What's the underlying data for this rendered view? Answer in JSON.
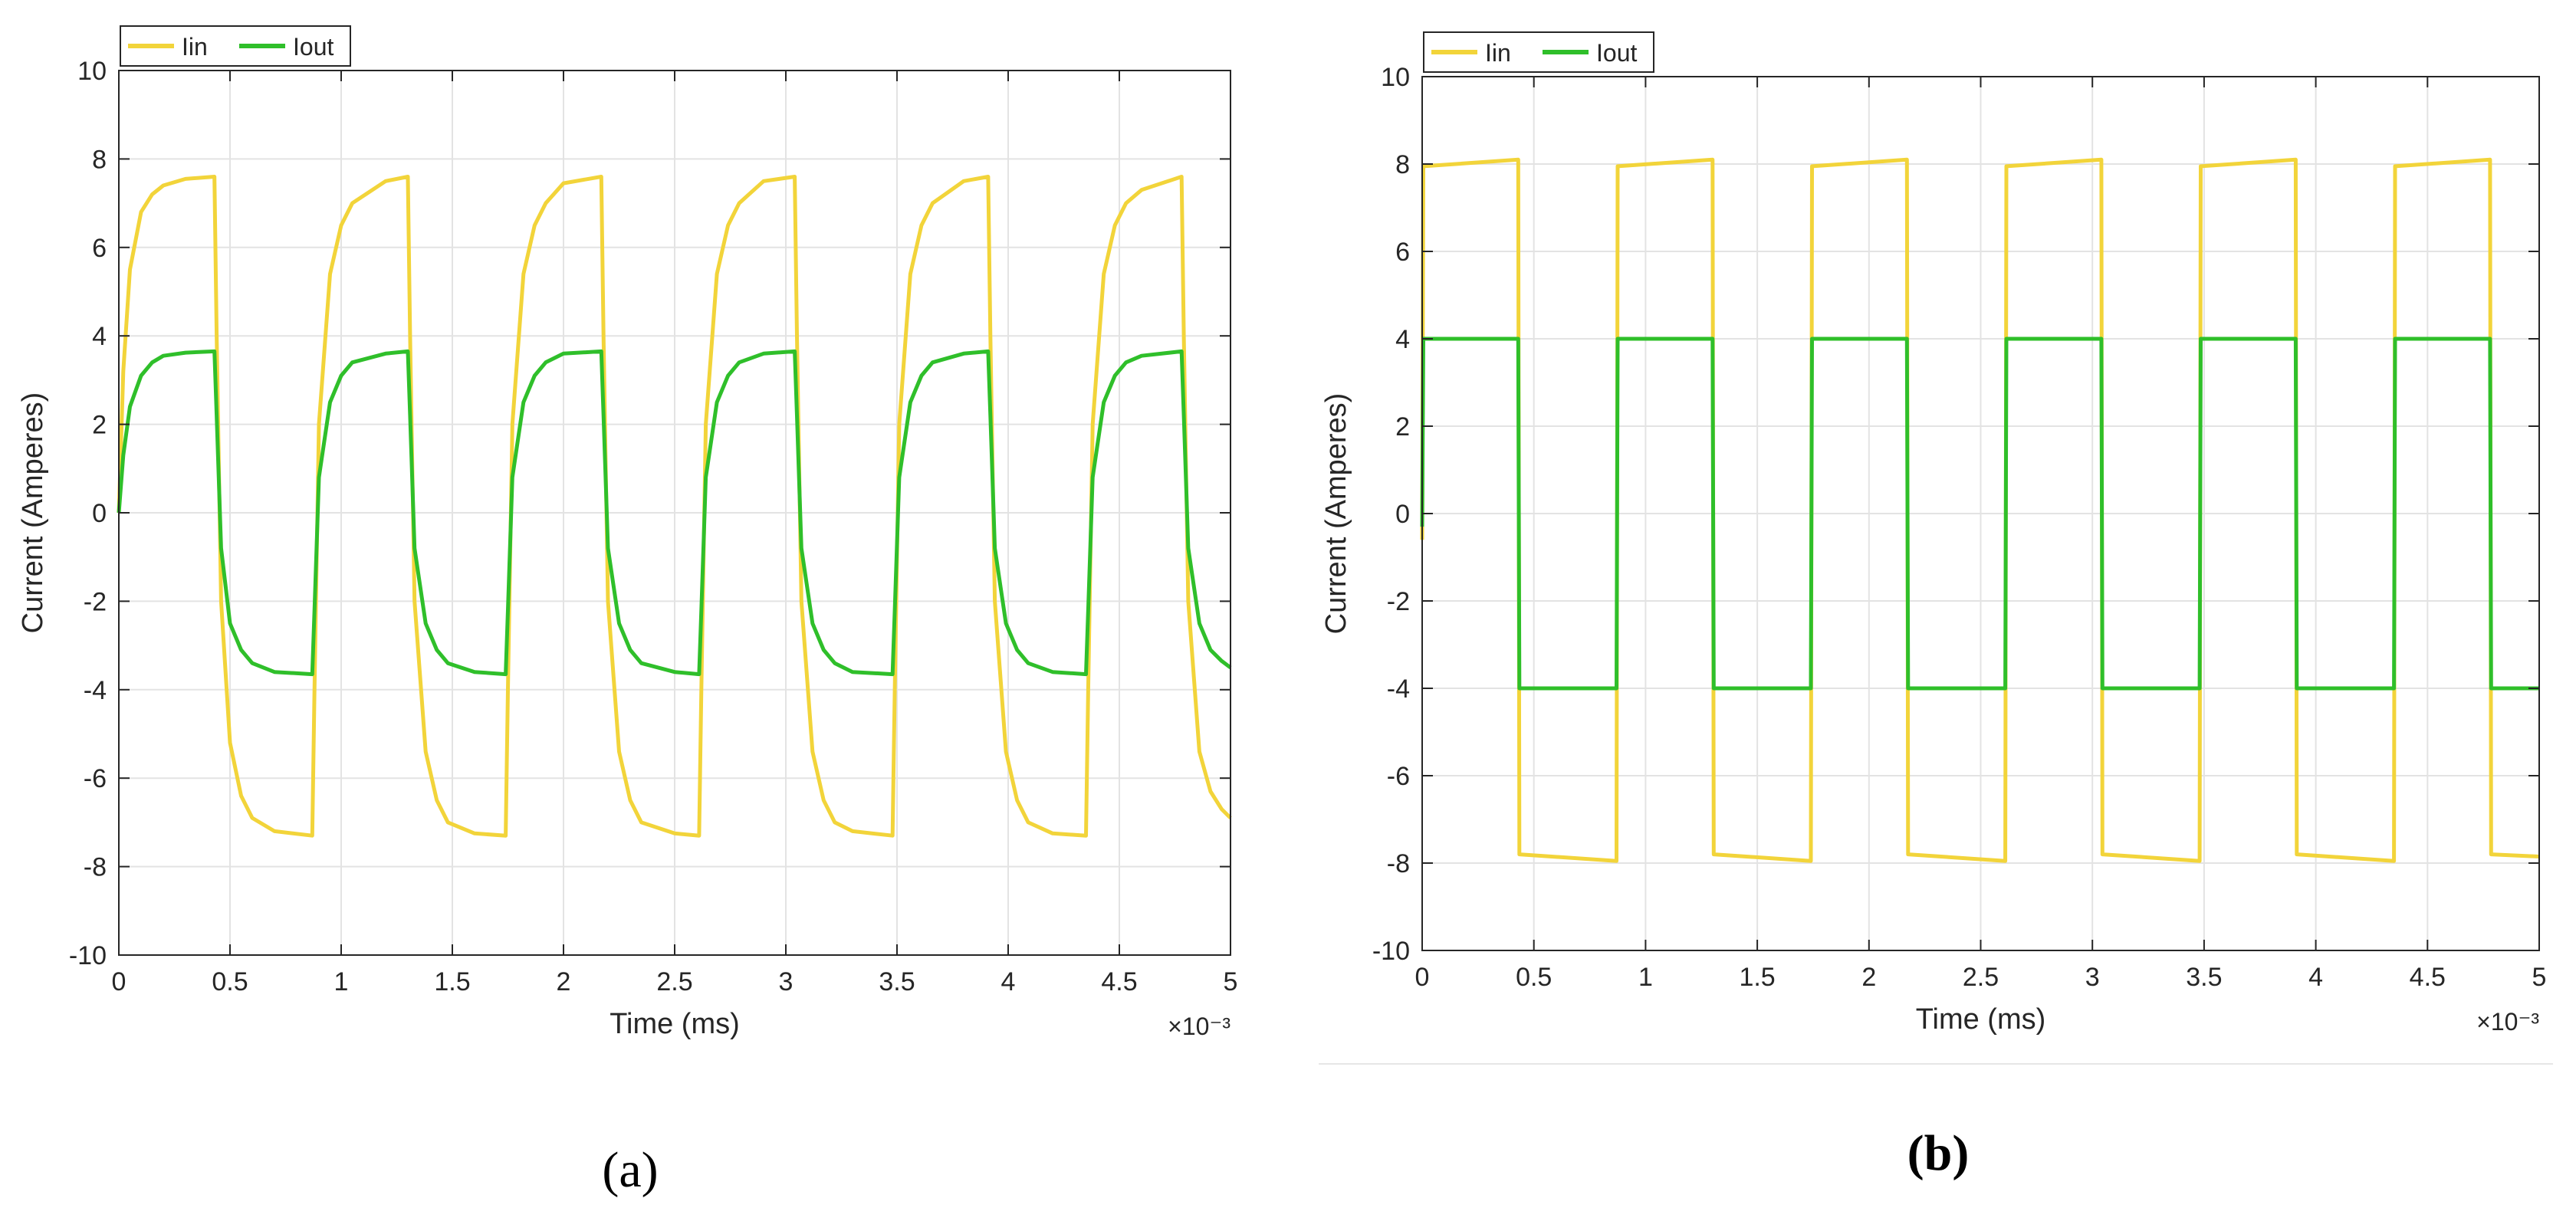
{
  "figure": {
    "panel_a_label": "(a)",
    "panel_b_label": "(b)"
  },
  "chart_data": [
    {
      "type": "line",
      "panel": "a",
      "xlabel": "Time (ms)",
      "ylabel": "Current (Amperes)",
      "x_exponent_label": "×10⁻³",
      "xlim": [
        0,
        0.005
      ],
      "ylim": [
        -10,
        10
      ],
      "x_ticks": [
        0,
        0.0005,
        0.001,
        0.0015,
        0.002,
        0.0025,
        0.003,
        0.0035,
        0.004,
        0.0045,
        0.005
      ],
      "x_tick_labels": [
        "0",
        "0.5",
        "1",
        "1.5",
        "2",
        "2.5",
        "3",
        "3.5",
        "4",
        "4.5",
        "5"
      ],
      "y_ticks": [
        -10,
        -8,
        -6,
        -4,
        -2,
        0,
        2,
        4,
        6,
        8,
        10
      ],
      "y_tick_labels": [
        "-10",
        "-8",
        "-6",
        "-4",
        "-2",
        "0",
        "2",
        "4",
        "6",
        "8",
        "10"
      ],
      "grid": true,
      "legend_position": "top-left",
      "series": [
        {
          "name": "Iin",
          "color": "#f2d43a",
          "x": [
            0,
            2e-05,
            5e-05,
            0.0001,
            0.00015,
            0.0002,
            0.0003,
            0.00043,
            0.00044,
            0.00046,
            0.0005,
            0.00055,
            0.0006,
            0.0007,
            0.00087,
            0.00088,
            0.0009,
            0.00095,
            0.001,
            0.00105,
            0.0012,
            0.0013,
            0.00131,
            0.00133,
            0.00138,
            0.00143,
            0.00148,
            0.0016,
            0.00174,
            0.00175,
            0.00177,
            0.00182,
            0.00187,
            0.00192,
            0.002,
            0.00217,
            0.00218,
            0.0022,
            0.00225,
            0.0023,
            0.00235,
            0.0025,
            0.00261,
            0.00262,
            0.00264,
            0.00269,
            0.00274,
            0.00279,
            0.0029,
            0.00304,
            0.00305,
            0.00307,
            0.00312,
            0.00317,
            0.00322,
            0.0033,
            0.00348,
            0.00349,
            0.00351,
            0.00356,
            0.00361,
            0.00366,
            0.0038,
            0.00391,
            0.00392,
            0.00394,
            0.00399,
            0.00404,
            0.00409,
            0.0042,
            0.00435,
            0.00436,
            0.00438,
            0.00443,
            0.00448,
            0.00453,
            0.0046,
            0.00478,
            0.00479,
            0.00481,
            0.00486,
            0.00491,
            0.00496,
            0.005
          ],
          "y": [
            0.0,
            3.2,
            5.5,
            6.8,
            7.2,
            7.4,
            7.55,
            7.6,
            4.0,
            -2.0,
            -5.2,
            -6.4,
            -6.9,
            -7.2,
            -7.3,
            -4.0,
            2.0,
            5.4,
            6.5,
            7.0,
            7.5,
            7.6,
            4.0,
            -2.0,
            -5.4,
            -6.5,
            -7.0,
            -7.25,
            -7.3,
            -4.0,
            2.0,
            5.4,
            6.5,
            7.0,
            7.45,
            7.6,
            4.0,
            -2.0,
            -5.4,
            -6.5,
            -7.0,
            -7.25,
            -7.3,
            -4.0,
            2.0,
            5.4,
            6.5,
            7.0,
            7.5,
            7.6,
            4.0,
            -2.0,
            -5.4,
            -6.5,
            -7.0,
            -7.2,
            -7.3,
            -4.0,
            2.0,
            5.4,
            6.5,
            7.0,
            7.5,
            7.6,
            4.0,
            -2.0,
            -5.4,
            -6.5,
            -7.0,
            -7.25,
            -7.3,
            -4.0,
            2.0,
            5.4,
            6.5,
            7.0,
            7.3,
            7.6,
            4.0,
            -2.0,
            -5.4,
            -6.3,
            -6.7,
            -6.9
          ]
        },
        {
          "name": "Iout",
          "color": "#2fbf2a",
          "x": [
            0,
            2e-05,
            5e-05,
            0.0001,
            0.00015,
            0.0002,
            0.0003,
            0.00043,
            0.00044,
            0.00046,
            0.0005,
            0.00055,
            0.0006,
            0.0007,
            0.00087,
            0.00088,
            0.0009,
            0.00095,
            0.001,
            0.00105,
            0.0012,
            0.0013,
            0.00131,
            0.00133,
            0.00138,
            0.00143,
            0.00148,
            0.0016,
            0.00174,
            0.00175,
            0.00177,
            0.00182,
            0.00187,
            0.00192,
            0.002,
            0.00217,
            0.00218,
            0.0022,
            0.00225,
            0.0023,
            0.00235,
            0.0025,
            0.00261,
            0.00262,
            0.00264,
            0.00269,
            0.00274,
            0.00279,
            0.0029,
            0.00304,
            0.00305,
            0.00307,
            0.00312,
            0.00317,
            0.00322,
            0.0033,
            0.00348,
            0.00349,
            0.00351,
            0.00356,
            0.00361,
            0.00366,
            0.0038,
            0.00391,
            0.00392,
            0.00394,
            0.00399,
            0.00404,
            0.00409,
            0.0042,
            0.00435,
            0.00436,
            0.00438,
            0.00443,
            0.00448,
            0.00453,
            0.0046,
            0.00478,
            0.00479,
            0.00481,
            0.00486,
            0.00491,
            0.00496,
            0.005
          ],
          "y": [
            0.0,
            1.3,
            2.4,
            3.1,
            3.4,
            3.55,
            3.62,
            3.65,
            2.2,
            -0.8,
            -2.5,
            -3.1,
            -3.4,
            -3.6,
            -3.65,
            -2.2,
            0.8,
            2.5,
            3.1,
            3.4,
            3.6,
            3.65,
            2.2,
            -0.8,
            -2.5,
            -3.1,
            -3.4,
            -3.6,
            -3.65,
            -2.2,
            0.8,
            2.5,
            3.1,
            3.4,
            3.6,
            3.65,
            2.2,
            -0.8,
            -2.5,
            -3.1,
            -3.4,
            -3.6,
            -3.65,
            -2.2,
            0.8,
            2.5,
            3.1,
            3.4,
            3.6,
            3.65,
            2.2,
            -0.8,
            -2.5,
            -3.1,
            -3.4,
            -3.6,
            -3.65,
            -2.2,
            0.8,
            2.5,
            3.1,
            3.4,
            3.6,
            3.65,
            2.2,
            -0.8,
            -2.5,
            -3.1,
            -3.4,
            -3.6,
            -3.65,
            -2.2,
            0.8,
            2.5,
            3.1,
            3.4,
            3.55,
            3.65,
            2.2,
            -0.8,
            -2.5,
            -3.1,
            -3.35,
            -3.5
          ]
        }
      ]
    },
    {
      "type": "line",
      "panel": "b",
      "xlabel": "Time (ms)",
      "ylabel": "Current (Amperes)",
      "x_exponent_label": "×10⁻³",
      "xlim": [
        0,
        0.005
      ],
      "ylim": [
        -10,
        10
      ],
      "x_ticks": [
        0,
        0.0005,
        0.001,
        0.0015,
        0.002,
        0.0025,
        0.003,
        0.0035,
        0.004,
        0.0045,
        0.005
      ],
      "x_tick_labels": [
        "0",
        "0.5",
        "1",
        "1.5",
        "2",
        "2.5",
        "3",
        "3.5",
        "4",
        "4.5",
        "5"
      ],
      "y_ticks": [
        -10,
        -8,
        -6,
        -4,
        -2,
        0,
        2,
        4,
        6,
        8,
        10
      ],
      "y_tick_labels": [
        "-10",
        "-8",
        "-6",
        "-4",
        "-2",
        "0",
        "2",
        "4",
        "6",
        "8",
        "10"
      ],
      "grid": true,
      "legend_position": "top-left",
      "series": [
        {
          "name": "Iin",
          "color": "#f2d43a",
          "x": [
            0,
            5e-06,
            0.00043,
            0.000435,
            0.00087,
            0.000875,
            0.0013,
            0.001305,
            0.00174,
            0.001745,
            0.00217,
            0.002175,
            0.00261,
            0.002615,
            0.00304,
            0.003045,
            0.00348,
            0.003485,
            0.00391,
            0.003915,
            0.00435,
            0.004355,
            0.00478,
            0.004785,
            0.005
          ],
          "y": [
            -0.6,
            7.95,
            8.1,
            -7.8,
            -7.95,
            7.95,
            8.1,
            -7.8,
            -7.95,
            7.95,
            8.1,
            -7.8,
            -7.95,
            7.95,
            8.1,
            -7.8,
            -7.95,
            7.95,
            8.1,
            -7.8,
            -7.95,
            7.95,
            8.1,
            -7.8,
            -7.85
          ]
        },
        {
          "name": "Iout",
          "color": "#2fbf2a",
          "x": [
            0,
            5e-06,
            0.00043,
            0.000435,
            0.00087,
            0.000875,
            0.0013,
            0.001305,
            0.00174,
            0.001745,
            0.00217,
            0.002175,
            0.00261,
            0.002615,
            0.00304,
            0.003045,
            0.00348,
            0.003485,
            0.00391,
            0.003915,
            0.00435,
            0.004355,
            0.00478,
            0.004785,
            0.005
          ],
          "y": [
            -0.3,
            4.0,
            4.0,
            -4.0,
            -4.0,
            4.0,
            4.0,
            -4.0,
            -4.0,
            4.0,
            4.0,
            -4.0,
            -4.0,
            4.0,
            4.0,
            -4.0,
            -4.0,
            4.0,
            4.0,
            -4.0,
            -4.0,
            4.0,
            4.0,
            -4.0,
            -4.0
          ]
        }
      ]
    }
  ]
}
